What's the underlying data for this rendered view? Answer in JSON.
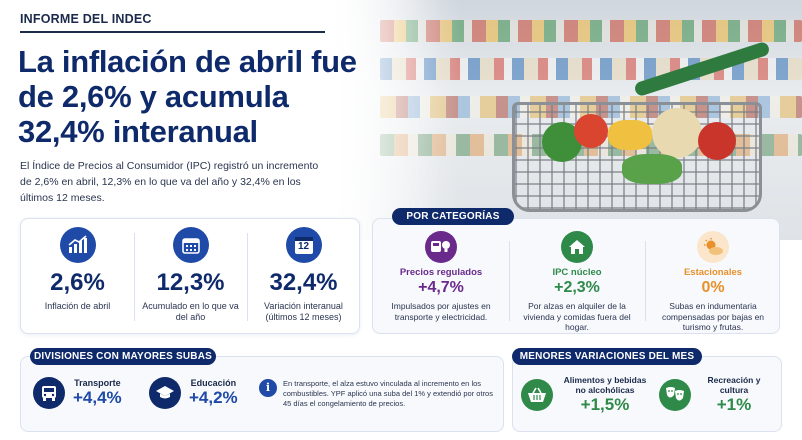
{
  "header": {
    "kicker": "INFORME DEL INDEC",
    "title": "La inflación de abril fue de 2,6% y acumula 32,4% interanual",
    "lead": "El Índice de Precios al Consumidor (IPC) registró un incremento de 2,6% en abril, 12,3% en lo que va del año y 32,4% en los últimos 12 meses."
  },
  "stats": [
    {
      "icon": "bar-chart-icon",
      "value": "2,6%",
      "label": "Inflación de abril"
    },
    {
      "icon": "calendar-icon",
      "value": "12,3%",
      "label": "Acumulado en lo que va del año"
    },
    {
      "icon": "calendar-12-icon",
      "value": "32,4%",
      "label": "Variación interanual (últimos 12 meses)",
      "badge": "12"
    }
  ],
  "categories": {
    "heading": "POR CATEGORÍAS",
    "items": [
      {
        "icon": "bus-bulb-icon",
        "name": "Precios regulados",
        "value": "+4,7%",
        "description": "Impulsados por ajustes en transporte y electricidad.",
        "color": "#6a2a8c"
      },
      {
        "icon": "house-icon",
        "name": "IPC núcleo",
        "value": "+2,3%",
        "description": "Por alzas en alquiler de la vivienda y comidas fuera del hogar.",
        "color": "#2f8a4a"
      },
      {
        "icon": "sun-cloud-icon",
        "name": "Estacionales",
        "value": "0%",
        "description": "Subas en indumentaria compensadas por bajas en turismo y frutas.",
        "color": "#e8902a"
      }
    ]
  },
  "divisions": {
    "heading": "DIVISIONES CON MAYORES SUBAS",
    "items": [
      {
        "icon": "bus-icon",
        "name": "Transporte",
        "value": "+4,4%"
      },
      {
        "icon": "graduation-cap-icon",
        "name": "Educación",
        "value": "+4,2%"
      }
    ],
    "note": "En transporte, el alza estuvo vinculada al incremento en los combustibles. YPF aplicó una suba del 1% y extendió por otros 45 días el congelamiento de precios."
  },
  "minor": {
    "heading": "MENORES VARIACIONES DEL MES",
    "items": [
      {
        "icon": "basket-icon",
        "name": "Alimentos y bebidas no alcohólicas",
        "value": "+1,5%",
        "color": "#2f8a4a"
      },
      {
        "icon": "theater-masks-icon",
        "name": "Recreación y cultura",
        "value": "+1%",
        "color": "#2f8a4a"
      }
    ]
  },
  "colors": {
    "navy": "#0f2a6b",
    "blue": "#1f4aa8",
    "green": "#2f8a4a",
    "purple": "#6a2a8c",
    "orange": "#e8902a"
  }
}
